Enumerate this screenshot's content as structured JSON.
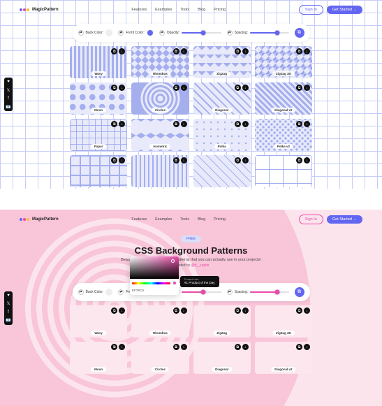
{
  "brand": "MagicPattern",
  "nav": [
    "Features",
    "Examples",
    "Tools",
    "Blog",
    "Pricing"
  ],
  "signin": "Sign In",
  "getstarted": "Get Started →",
  "controls": {
    "back": "Back Color:",
    "front": "Front Color:",
    "opacity": "Opacity:",
    "spacing": "Spacing:"
  },
  "hero": {
    "badge": "FREE",
    "title": "CSS Background Patterns",
    "sub": "Beautiful pure CSS background patterns that you can actually use in your projects!",
    "cred_pre": "Curated by ",
    "cred_link": "@d__raptis"
  },
  "picker_hex": "EF7BC6",
  "ph": {
    "small": "Product Hunt",
    "main": "#1 Product of the Day"
  },
  "social": [
    "♥",
    "𝕏",
    "f",
    "📧"
  ],
  "colors": {
    "purple_accent": "#6366f1",
    "purple_light": "#a5afee",
    "purple_bg": "#e8eafb",
    "pink_accent": "#ea4aaa",
    "pink_light": "#f4b8d0",
    "pink_bg": "#fde7ef",
    "back_swatch": "#eeeeee"
  },
  "sliders": {
    "opacity": 55,
    "spacing": 70
  },
  "patterns_row1": [
    {
      "n": "Wavy",
      "c": "p-wavy"
    },
    {
      "n": "Rhombus",
      "c": "p-rhombus"
    },
    {
      "n": "ZigZag",
      "c": "p-zigzag"
    },
    {
      "n": "ZigZag 3D",
      "c": "p-zigzag3d"
    }
  ],
  "patterns_row2": [
    {
      "n": "Moon",
      "c": "p-moon"
    },
    {
      "n": "Circles",
      "c": "p-circles"
    },
    {
      "n": "Diagonal",
      "c": "p-diag"
    },
    {
      "n": "Diagonal v2",
      "c": "p-diag2"
    }
  ],
  "patterns_row3": [
    {
      "n": "Paper",
      "c": "p-paper"
    },
    {
      "n": "Isometric",
      "c": "p-iso"
    },
    {
      "n": "Polka",
      "c": "p-polka"
    },
    {
      "n": "Polka v2",
      "c": "p-polka2"
    }
  ],
  "patterns_row4": [
    {
      "n": "",
      "c": "p-boxes"
    },
    {
      "n": "",
      "c": "p-lines"
    },
    {
      "n": "",
      "c": "p-diag3"
    },
    {
      "n": "",
      "c": "p-grid2"
    }
  ]
}
